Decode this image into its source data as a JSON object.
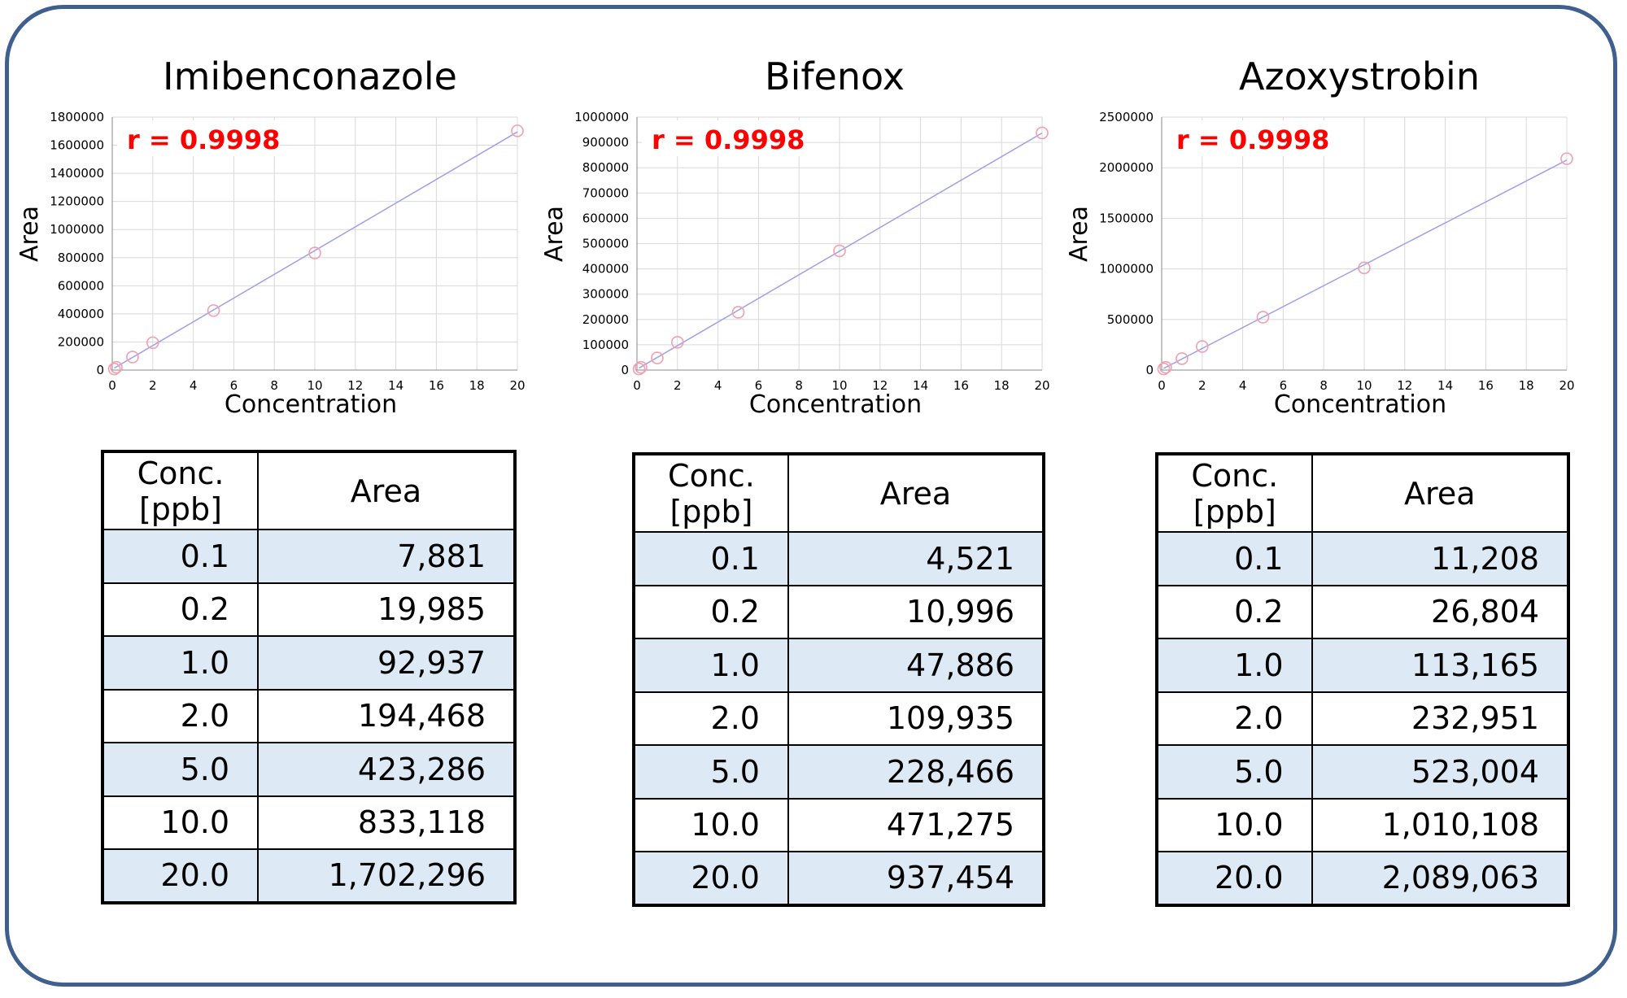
{
  "chart_data": [
    {
      "type": "scatter",
      "title": "Imibenconazole",
      "annotation": "r = 0.9998",
      "xlabel": "Concentration",
      "ylabel": "Area",
      "xlim": [
        0,
        20
      ],
      "ylim": [
        0,
        1800000
      ],
      "xticks": [
        "0",
        "2",
        "4",
        "6",
        "8",
        "10",
        "12",
        "14",
        "16",
        "18",
        "20"
      ],
      "yticks": [
        "0",
        "200000",
        "400000",
        "600000",
        "800000",
        "1000000",
        "1200000",
        "1400000",
        "1600000",
        "1800000"
      ],
      "ytick_values": [
        0,
        200000,
        400000,
        600000,
        800000,
        1000000,
        1200000,
        1400000,
        1600000,
        1800000
      ],
      "x": [
        0.1,
        0.2,
        1.0,
        2.0,
        5.0,
        10.0,
        20.0
      ],
      "y": [
        7881,
        19985,
        92937,
        194468,
        423286,
        833118,
        1702296
      ],
      "grid": true,
      "table": {
        "header_conc": "Conc.",
        "header_unit": "[ppb]",
        "header_area": "Area",
        "rows": [
          {
            "conc": "0.1",
            "area": "7,881"
          },
          {
            "conc": "0.2",
            "area": "19,985"
          },
          {
            "conc": "1.0",
            "area": "92,937"
          },
          {
            "conc": "2.0",
            "area": "194,468"
          },
          {
            "conc": "5.0",
            "area": "423,286"
          },
          {
            "conc": "10.0",
            "area": "833,118"
          },
          {
            "conc": "20.0",
            "area": "1,702,296"
          }
        ]
      }
    },
    {
      "type": "scatter",
      "title": "Bifenox",
      "annotation": "r = 0.9998",
      "xlabel": "Concentration",
      "ylabel": "Area",
      "xlim": [
        0,
        20
      ],
      "ylim": [
        0,
        1000000
      ],
      "xticks": [
        "0",
        "2",
        "4",
        "6",
        "8",
        "10",
        "12",
        "14",
        "16",
        "18",
        "20"
      ],
      "yticks": [
        "0",
        "100000",
        "200000",
        "300000",
        "400000",
        "500000",
        "600000",
        "700000",
        "800000",
        "900000",
        "1000000"
      ],
      "ytick_values": [
        0,
        100000,
        200000,
        300000,
        400000,
        500000,
        600000,
        700000,
        800000,
        900000,
        1000000
      ],
      "x": [
        0.1,
        0.2,
        1.0,
        2.0,
        5.0,
        10.0,
        20.0
      ],
      "y": [
        4521,
        10996,
        47886,
        109935,
        228466,
        471275,
        937454
      ],
      "grid": true,
      "table": {
        "header_conc": "Conc.",
        "header_unit": "[ppb]",
        "header_area": "Area",
        "rows": [
          {
            "conc": "0.1",
            "area": "4,521"
          },
          {
            "conc": "0.2",
            "area": "10,996"
          },
          {
            "conc": "1.0",
            "area": "47,886"
          },
          {
            "conc": "2.0",
            "area": "109,935"
          },
          {
            "conc": "5.0",
            "area": "228,466"
          },
          {
            "conc": "10.0",
            "area": "471,275"
          },
          {
            "conc": "20.0",
            "area": "937,454"
          }
        ]
      }
    },
    {
      "type": "scatter",
      "title": "Azoxystrobin",
      "annotation": "r = 0.9998",
      "xlabel": "Concentration",
      "ylabel": "Area",
      "xlim": [
        0,
        20
      ],
      "ylim": [
        0,
        2500000
      ],
      "xticks": [
        "0",
        "2",
        "4",
        "6",
        "8",
        "10",
        "12",
        "14",
        "16",
        "18",
        "20"
      ],
      "yticks": [
        "0",
        "500000",
        "1000000",
        "1500000",
        "2000000",
        "2500000"
      ],
      "ytick_values": [
        0,
        500000,
        1000000,
        1500000,
        2000000,
        2500000
      ],
      "x": [
        0.1,
        0.2,
        1.0,
        2.0,
        5.0,
        10.0,
        20.0
      ],
      "y": [
        11208,
        26804,
        113165,
        232951,
        523004,
        1010108,
        2089063
      ],
      "grid": true,
      "table": {
        "header_conc": "Conc.",
        "header_unit": "[ppb]",
        "header_area": "Area",
        "rows": [
          {
            "conc": "0.1",
            "area": "11,208"
          },
          {
            "conc": "0.2",
            "area": "26,804"
          },
          {
            "conc": "1.0",
            "area": "113,165"
          },
          {
            "conc": "2.0",
            "area": "232,951"
          },
          {
            "conc": "5.0",
            "area": "523,004"
          },
          {
            "conc": "10.0",
            "area": "1,010,108"
          },
          {
            "conc": "20.0",
            "area": "2,089,063"
          }
        ]
      }
    }
  ],
  "colors": {
    "frame": "#3f5f8f",
    "grid": "#d9d9d9",
    "marker": "#f0a0b0",
    "fit_line": "#a0a0e8",
    "annotation": "#ff0000",
    "row_shade": "#dde9f5"
  }
}
